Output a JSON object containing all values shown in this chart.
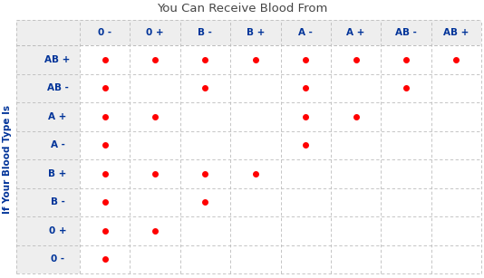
{
  "title": "You Can Receive Blood From",
  "col_labels": [
    "0 -",
    "0 +",
    "B -",
    "B +",
    "A -",
    "A +",
    "AB -",
    "AB +"
  ],
  "row_labels": [
    "AB +",
    "AB -",
    "A +",
    "A -",
    "B +",
    "B -",
    "0 +",
    "0 -"
  ],
  "ylabel": "If Your Blood Type Is",
  "dot_color": "#ff0000",
  "dot_size": 4,
  "grid_color": "#bbbbbb",
  "header_bg": "#eeeeee",
  "cell_bg": "#ffffff",
  "title_color": "#444444",
  "label_color": "#003399",
  "ylabel_color": "#003399",
  "title_fontsize": 9.5,
  "label_fontsize": 7.5,
  "ylabel_fontsize": 7.5,
  "dots": [
    [
      1,
      1,
      1,
      1,
      1,
      1,
      1,
      1
    ],
    [
      1,
      0,
      1,
      0,
      1,
      0,
      1,
      0
    ],
    [
      1,
      1,
      0,
      0,
      1,
      1,
      0,
      0
    ],
    [
      1,
      0,
      0,
      0,
      1,
      0,
      0,
      0
    ],
    [
      1,
      1,
      1,
      1,
      0,
      0,
      0,
      0
    ],
    [
      1,
      0,
      1,
      0,
      0,
      0,
      0,
      0
    ],
    [
      1,
      1,
      0,
      0,
      0,
      0,
      0,
      0
    ],
    [
      1,
      0,
      0,
      0,
      0,
      0,
      0,
      0
    ]
  ]
}
